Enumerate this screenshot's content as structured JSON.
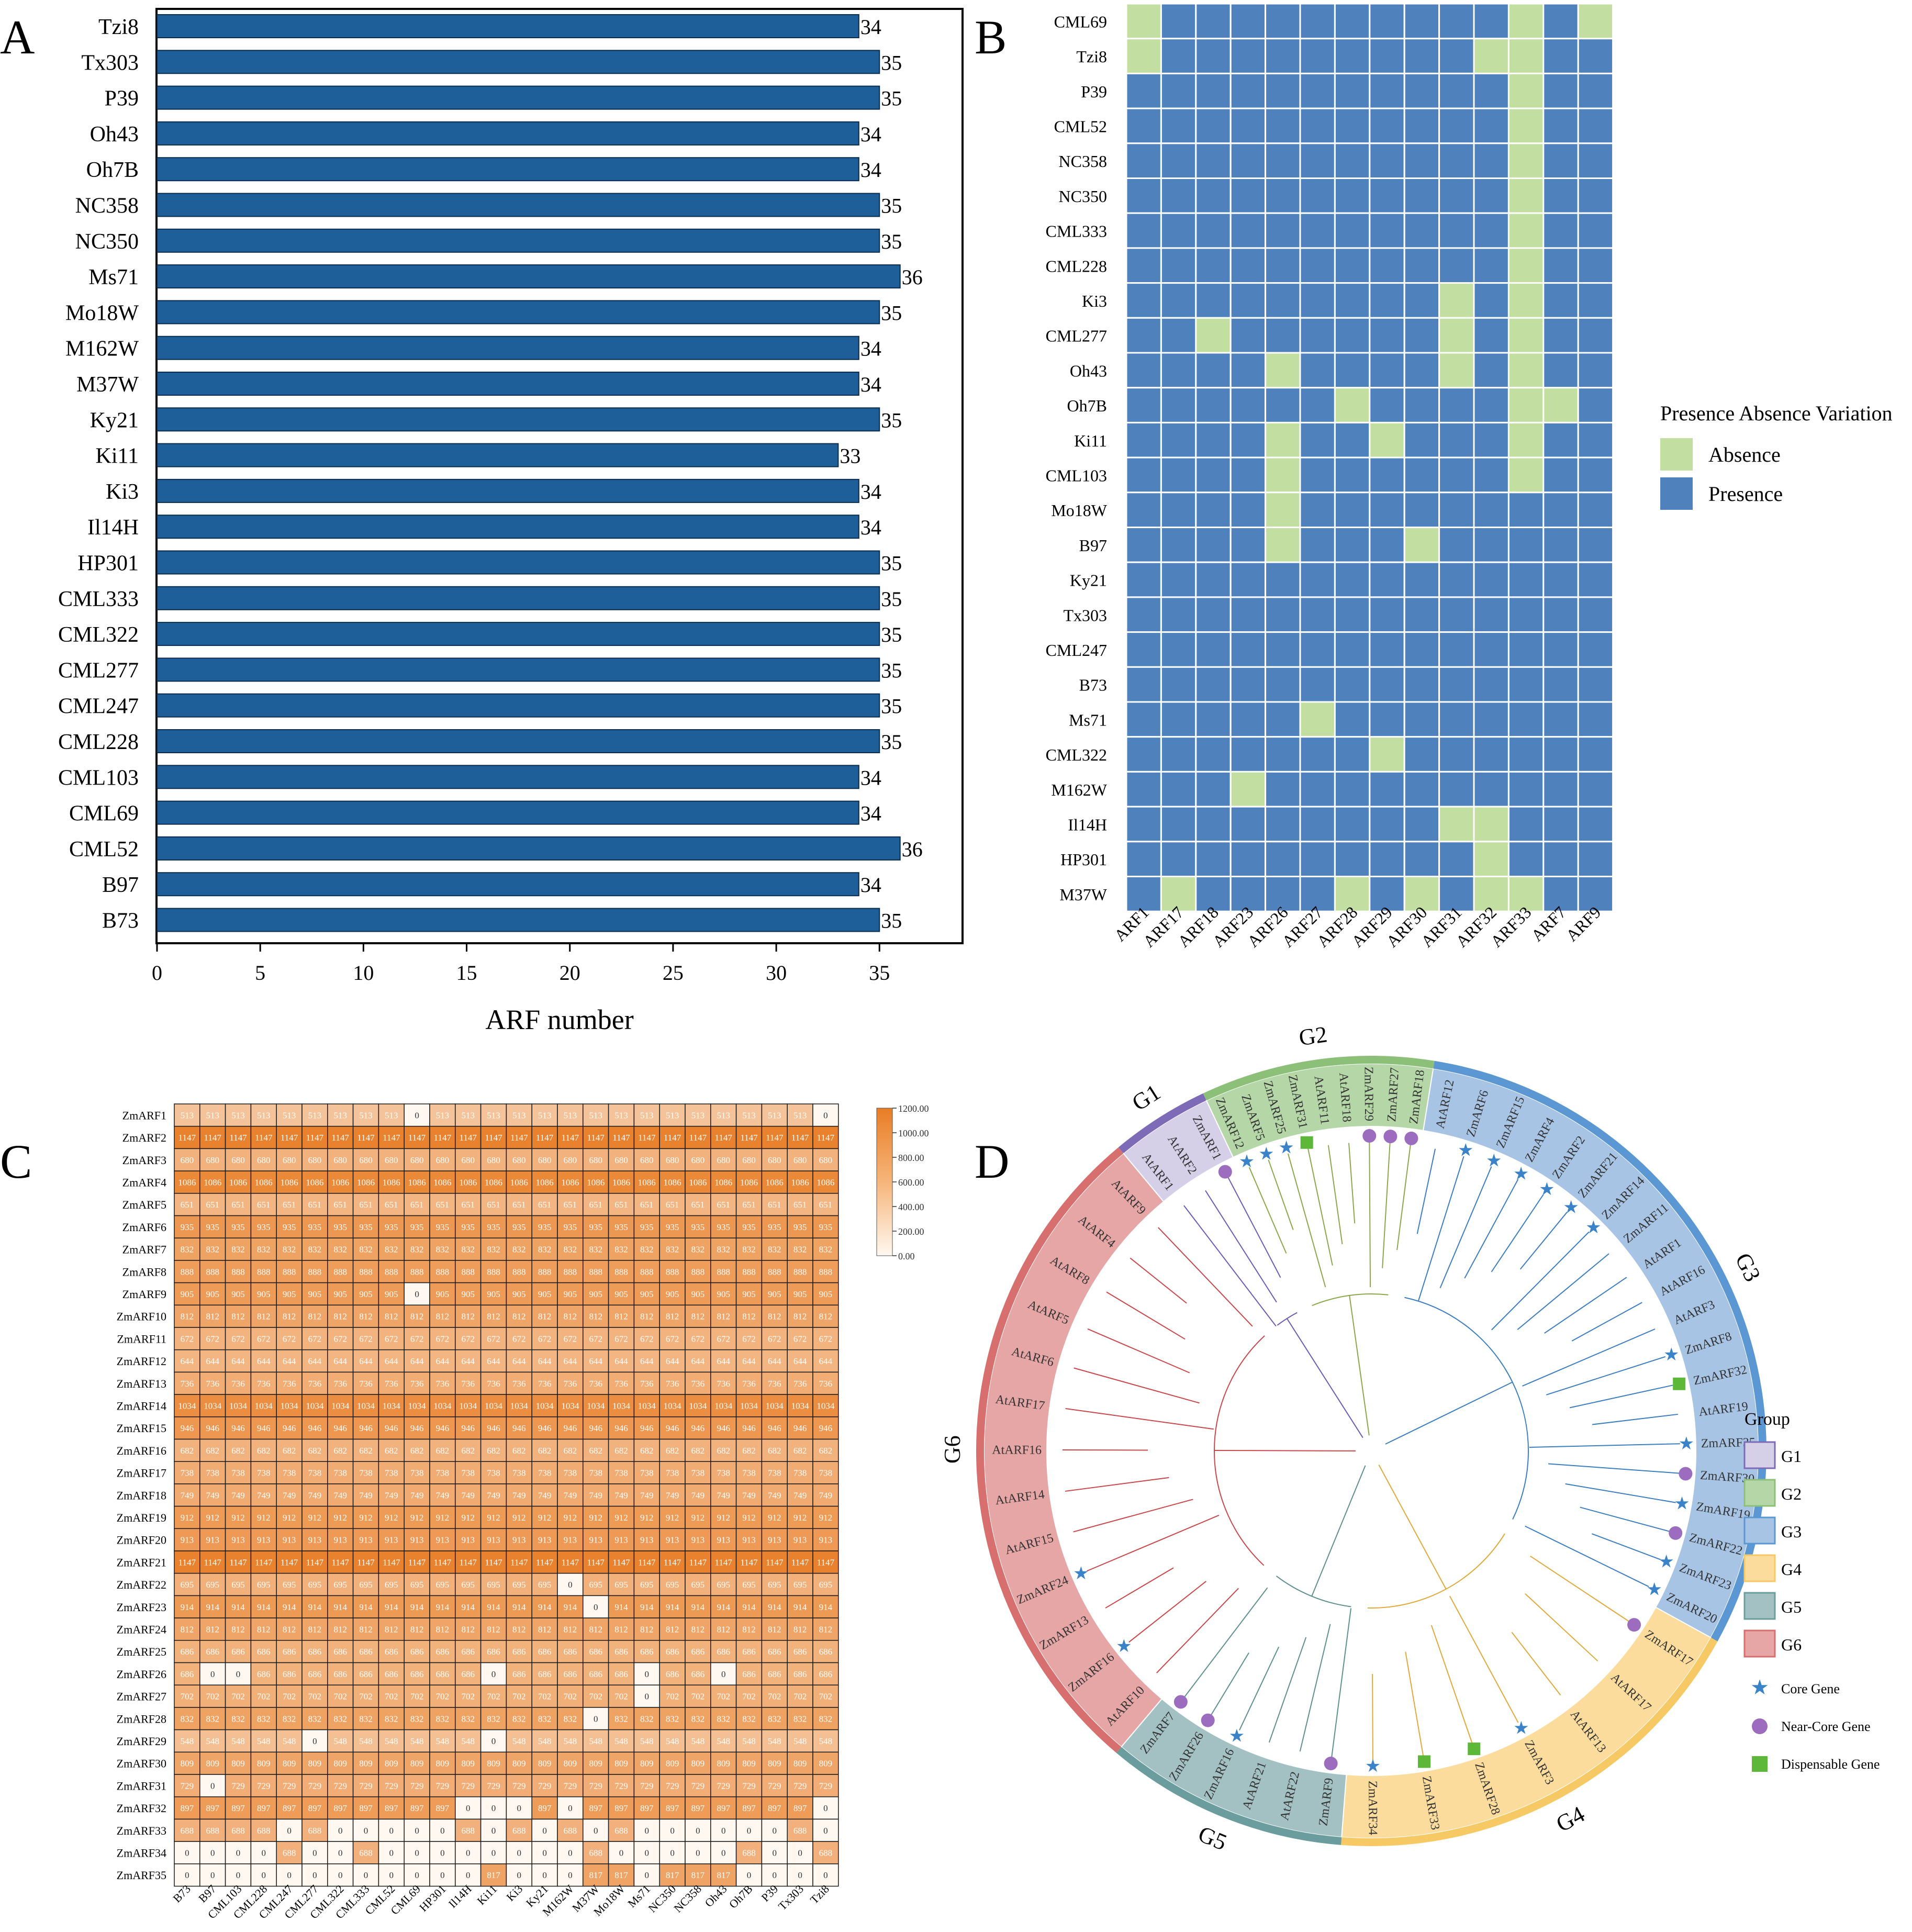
{
  "panel_labels": {
    "a": "A",
    "b": "B",
    "c": "C",
    "d": "D"
  },
  "colors": {
    "bar": "#1f5f99",
    "presence": "#4f81bd",
    "absence": "#c3dea1",
    "heat_high": "#e87d25",
    "heat_low": "#fff8f0",
    "G1": "#d6cfe8",
    "G2": "#b5d6a7",
    "G3": "#a7c4e5",
    "G4": "#fbdc9c",
    "G5": "#a3c1c2",
    "G6": "#e6a6a6",
    "core": "#3b83c9",
    "near_core": "#9c6dbf",
    "dispensable": "#5db83a"
  },
  "chart_data": [
    {
      "panel": "A",
      "type": "bar",
      "orientation": "horizontal",
      "categories": [
        "Tzi8",
        "Tx303",
        "P39",
        "Oh43",
        "Oh7B",
        "NC358",
        "NC350",
        "Ms71",
        "Mo18W",
        "M162W",
        "M37W",
        "Ky21",
        "Ki11",
        "Ki3",
        "Il14H",
        "HP301",
        "CML333",
        "CML322",
        "CML277",
        "CML247",
        "CML228",
        "CML103",
        "CML69",
        "CML52",
        "B97",
        "B73"
      ],
      "values": [
        34,
        35,
        35,
        34,
        34,
        35,
        35,
        36,
        35,
        34,
        34,
        35,
        33,
        34,
        34,
        35,
        35,
        35,
        35,
        35,
        35,
        34,
        34,
        36,
        34,
        35
      ],
      "xlabel": "ARF number",
      "xlim": [
        0,
        39
      ],
      "xticks": [
        "0",
        "5",
        "10",
        "15",
        "20",
        "25",
        "30",
        "35"
      ]
    },
    {
      "panel": "B",
      "type": "heatmap",
      "rows": [
        "CML69",
        "Tzi8",
        "P39",
        "CML52",
        "NC358",
        "NC350",
        "CML333",
        "CML228",
        "Ki3",
        "CML277",
        "Oh43",
        "Oh7B",
        "Ki11",
        "CML103",
        "Mo18W",
        "B97",
        "Ky21",
        "Tx303",
        "CML247",
        "B73",
        "Ms71",
        "CML322",
        "M162W",
        "Il14H",
        "HP301",
        "M37W"
      ],
      "columns": [
        "ARF1",
        "ARF17",
        "ARF18",
        "ARF23",
        "ARF26",
        "ARF27",
        "ARF28",
        "ARF29",
        "ARF30",
        "ARF31",
        "ARF32",
        "ARF33",
        "ARF7",
        "ARF9"
      ],
      "absence_cells": [
        [
          0,
          0
        ],
        [
          0,
          11
        ],
        [
          0,
          13
        ],
        [
          1,
          0
        ],
        [
          1,
          10
        ],
        [
          1,
          11
        ],
        [
          2,
          11
        ],
        [
          3,
          11
        ],
        [
          4,
          11
        ],
        [
          5,
          11
        ],
        [
          6,
          11
        ],
        [
          7,
          11
        ],
        [
          8,
          9
        ],
        [
          8,
          11
        ],
        [
          9,
          2
        ],
        [
          9,
          9
        ],
        [
          9,
          11
        ],
        [
          10,
          4
        ],
        [
          10,
          9
        ],
        [
          10,
          11
        ],
        [
          11,
          6
        ],
        [
          11,
          11
        ],
        [
          11,
          12
        ],
        [
          12,
          4
        ],
        [
          12,
          7
        ],
        [
          12,
          11
        ],
        [
          13,
          4
        ],
        [
          13,
          11
        ],
        [
          14,
          4
        ],
        [
          15,
          4
        ],
        [
          15,
          8
        ],
        [
          20,
          5
        ],
        [
          21,
          7
        ],
        [
          22,
          3
        ],
        [
          23,
          9
        ],
        [
          23,
          10
        ],
        [
          24,
          10
        ],
        [
          25,
          1
        ],
        [
          25,
          6
        ],
        [
          25,
          8
        ],
        [
          25,
          10
        ],
        [
          25,
          11
        ]
      ],
      "legend_title": "Presence Absence Variation",
      "legend": [
        "Absence",
        "Presence"
      ]
    },
    {
      "panel": "C",
      "type": "heatmap",
      "rows": [
        "ZmARF1",
        "ZmARF2",
        "ZmARF3",
        "ZmARF4",
        "ZmARF5",
        "ZmARF6",
        "ZmARF7",
        "ZmARF8",
        "ZmARF9",
        "ZmARF10",
        "ZmARF11",
        "ZmARF12",
        "ZmARF13",
        "ZmARF14",
        "ZmARF15",
        "ZmARF16",
        "ZmARF17",
        "ZmARF18",
        "ZmARF19",
        "ZmARF20",
        "ZmARF21",
        "ZmARF22",
        "ZmARF23",
        "ZmARF24",
        "ZmARF25",
        "ZmARF26",
        "ZmARF27",
        "ZmARF28",
        "ZmARF29",
        "ZmARF30",
        "ZmARF31",
        "ZmARF32",
        "ZmARF33",
        "ZmARF34",
        "ZmARF35"
      ],
      "columns": [
        "B73",
        "B97",
        "CML103",
        "CML228",
        "CML247",
        "CML277",
        "CML322",
        "CML333",
        "CML52",
        "CML69",
        "HP301",
        "Il14H",
        "Ki11",
        "Ki3",
        "Ky21",
        "M162W",
        "M37W",
        "Mo18W",
        "Ms71",
        "NC350",
        "NC358",
        "Oh43",
        "Oh7B",
        "P39",
        "Tx303",
        "Tzi8"
      ],
      "row_values": [
        513,
        1147,
        680,
        1086,
        651,
        935,
        832,
        888,
        905,
        812,
        672,
        644,
        736,
        1034,
        946,
        682,
        738,
        749,
        912,
        913,
        1147,
        695,
        914,
        812,
        686,
        686,
        702,
        832,
        548,
        809,
        729,
        897,
        688,
        0,
        0
      ],
      "zero_cells": [
        [
          0,
          9
        ],
        [
          0,
          25
        ],
        [
          8,
          9
        ],
        [
          21,
          15
        ],
        [
          22,
          16
        ],
        [
          25,
          1
        ],
        [
          25,
          2
        ],
        [
          25,
          12
        ],
        [
          25,
          18
        ],
        [
          25,
          21
        ],
        [
          26,
          18
        ],
        [
          27,
          16
        ],
        [
          28,
          5
        ],
        [
          28,
          12
        ],
        [
          30,
          1
        ],
        [
          31,
          11
        ],
        [
          31,
          12
        ],
        [
          31,
          13
        ],
        [
          31,
          15
        ],
        [
          31,
          25
        ],
        [
          32,
          4
        ],
        [
          32,
          6
        ],
        [
          32,
          7
        ],
        [
          32,
          8
        ],
        [
          32,
          9
        ],
        [
          32,
          10
        ],
        [
          32,
          12
        ],
        [
          32,
          14
        ],
        [
          32,
          16
        ],
        [
          32,
          18
        ],
        [
          32,
          19
        ],
        [
          32,
          20
        ],
        [
          32,
          21
        ],
        [
          32,
          22
        ],
        [
          32,
          23
        ],
        [
          32,
          25
        ]
      ],
      "present_cells_34": [
        [
          33,
          4
        ],
        [
          33,
          7
        ],
        [
          33,
          16
        ],
        [
          33,
          22
        ],
        [
          33,
          25
        ]
      ],
      "present_cells_35": [
        [
          34,
          12
        ],
        [
          34,
          16
        ],
        [
          34,
          17
        ],
        [
          34,
          19
        ],
        [
          34,
          20
        ],
        [
          34,
          21
        ]
      ],
      "value_34": 688,
      "value_35": 817,
      "colorbar_ticks": [
        "1200.00",
        "1000.00",
        "800.00",
        "600.00",
        "400.00",
        "200.00",
        "0.00"
      ],
      "range": [
        0,
        1200
      ]
    },
    {
      "panel": "D",
      "type": "other",
      "groups": [
        "G1",
        "G2",
        "G3",
        "G4",
        "G5",
        "G6"
      ],
      "group_labels": [
        "G1",
        "G2",
        "G3",
        "G4",
        "G5",
        "G6"
      ],
      "group_spans_deg": [
        [
          -39.8,
          -25.2
        ],
        [
          -25.2,
          9.2
        ],
        [
          9.2,
          118.8
        ],
        [
          118.8,
          184.4
        ],
        [
          184.4,
          220.2
        ],
        [
          220.2,
          320.2
        ]
      ],
      "leaves": [
        {
          "label": "AtARF1",
          "group": "G1"
        },
        {
          "label": "AtARF2",
          "group": "G1"
        },
        {
          "label": "ZmARF1",
          "group": "G1",
          "type": "near"
        },
        {
          "label": "ZmARF12",
          "group": "G2",
          "type": "core"
        },
        {
          "label": "ZmARF5",
          "group": "G2",
          "type": "core"
        },
        {
          "label": "ZmARF25",
          "group": "G2",
          "type": "core"
        },
        {
          "label": "ZmARF31",
          "group": "G2",
          "type": "disp"
        },
        {
          "label": "AtARF11",
          "group": "G2"
        },
        {
          "label": "AtARF18",
          "group": "G2"
        },
        {
          "label": "ZmARF29",
          "group": "G2",
          "type": "near"
        },
        {
          "label": "ZmARF27",
          "group": "G2",
          "type": "near"
        },
        {
          "label": "ZmARF18",
          "group": "G2",
          "type": "near"
        },
        {
          "label": "AtARF12",
          "group": "G3"
        },
        {
          "label": "ZmARF6",
          "group": "G3",
          "type": "core"
        },
        {
          "label": "ZmARF15",
          "group": "G3",
          "type": "core"
        },
        {
          "label": "ZmARF4",
          "group": "G3",
          "type": "core"
        },
        {
          "label": "ZmARF2",
          "group": "G3",
          "type": "core"
        },
        {
          "label": "ZmARF21",
          "group": "G3",
          "type": "core"
        },
        {
          "label": "ZmARF14",
          "group": "G3",
          "type": "core"
        },
        {
          "label": "ZmARF11",
          "group": "G3"
        },
        {
          "label": "AtARF1",
          "group": "G3"
        },
        {
          "label": "AtARF16",
          "group": "G3"
        },
        {
          "label": "AtARF3",
          "group": "G3"
        },
        {
          "label": "ZmARF8",
          "group": "G3",
          "type": "core"
        },
        {
          "label": "ZmARF32",
          "group": "G3",
          "type": "disp"
        },
        {
          "label": "AtARF19",
          "group": "G3"
        },
        {
          "label": "ZmARF35",
          "group": "G3",
          "type": "core"
        },
        {
          "label": "ZmARF30",
          "group": "G3",
          "type": "near"
        },
        {
          "label": "ZmARF19",
          "group": "G3",
          "type": "core"
        },
        {
          "label": "ZmARF22",
          "group": "G3",
          "type": "near"
        },
        {
          "label": "ZmARF23",
          "group": "G3",
          "type": "core"
        },
        {
          "label": "ZmARF20",
          "group": "G3",
          "type": "core"
        },
        {
          "label": "ZmARF17",
          "group": "G4",
          "type": "near"
        },
        {
          "label": "AtARF17",
          "group": "G4"
        },
        {
          "label": "AtARF13",
          "group": "G4"
        },
        {
          "label": "ZmARF3",
          "group": "G4",
          "type": "core"
        },
        {
          "label": "ZmARF28",
          "group": "G4",
          "type": "disp"
        },
        {
          "label": "ZmARF33",
          "group": "G4",
          "type": "disp"
        },
        {
          "label": "ZmARF34",
          "group": "G4",
          "type": "core"
        },
        {
          "label": "ZmARF9",
          "group": "G5",
          "type": "near"
        },
        {
          "label": "AtARF22",
          "group": "G5"
        },
        {
          "label": "AtARF21",
          "group": "G5"
        },
        {
          "label": "ZmARF16",
          "group": "G5",
          "type": "core"
        },
        {
          "label": "ZmARF26",
          "group": "G5",
          "type": "near"
        },
        {
          "label": "ZmARF7",
          "group": "G5",
          "type": "near"
        },
        {
          "label": "AtARF10",
          "group": "G6"
        },
        {
          "label": "ZmARF16",
          "group": "G6",
          "type": "core"
        },
        {
          "label": "ZmARF13",
          "group": "G6"
        },
        {
          "label": "ZmARF24",
          "group": "G6",
          "type": "core"
        },
        {
          "label": "AtARF15",
          "group": "G6"
        },
        {
          "label": "AtARF14",
          "group": "G6"
        },
        {
          "label": "AtARF16",
          "group": "G6"
        },
        {
          "label": "AtARF17",
          "group": "G6"
        },
        {
          "label": "AtARF6",
          "group": "G6"
        },
        {
          "label": "AtARF5",
          "group": "G6"
        },
        {
          "label": "AtARF8",
          "group": "G6"
        },
        {
          "label": "AtARF4",
          "group": "G6"
        },
        {
          "label": "AtARF9",
          "group": "G6"
        }
      ],
      "legend_title": "Group",
      "legend_markers": [
        "Core Gene",
        "Near-Core Gene",
        "Dispensable Gene"
      ]
    }
  ]
}
